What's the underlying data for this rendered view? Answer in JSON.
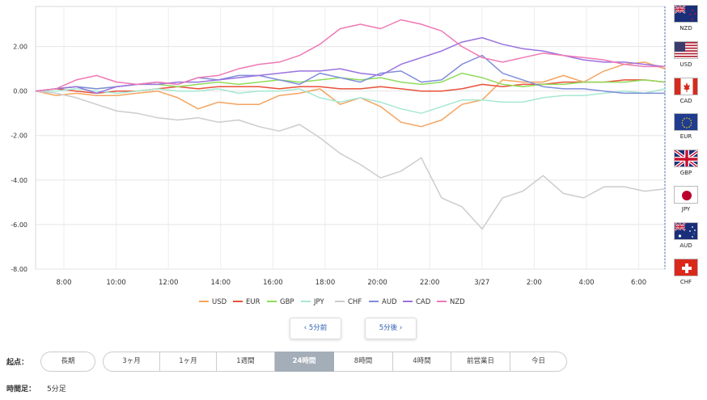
{
  "chart_data": {
    "type": "line",
    "y_ticks": [
      "2.00",
      "0.00",
      "-2.00",
      "-4.00",
      "-6.00",
      "-8.00"
    ],
    "ylim": [
      -8,
      3.8
    ],
    "x_ticks": [
      "8:00",
      "10:00",
      "12:00",
      "14:00",
      "16:00",
      "18:00",
      "20:00",
      "22:00",
      "3/27",
      "2:00",
      "4:00",
      "6:00"
    ],
    "grid": true,
    "legend_position": "bottom",
    "series": [
      {
        "name": "USD",
        "color": "#f4a460",
        "values": [
          0,
          -0.2,
          -0.1,
          -0.2,
          -0.2,
          -0.1,
          0,
          -0.3,
          -0.8,
          -0.5,
          -0.6,
          -0.6,
          -0.2,
          -0.1,
          0.1,
          -0.6,
          -0.3,
          -0.7,
          -1.4,
          -1.6,
          -1.3,
          -0.6,
          -0.4,
          0.5,
          0.4,
          0.4,
          0.7,
          0.4,
          0.9,
          1.2,
          1.3,
          1.0
        ]
      },
      {
        "name": "EUR",
        "color": "#e8513a",
        "values": [
          0,
          0.1,
          0,
          -0.1,
          0,
          0,
          0.1,
          0.2,
          0.1,
          0.2,
          0.2,
          0.2,
          0.1,
          0.2,
          0.2,
          0.1,
          0.1,
          0.2,
          0.1,
          0,
          0,
          0.1,
          0.3,
          0.2,
          0.3,
          0.3,
          0.4,
          0.4,
          0.4,
          0.5,
          0.5,
          0.4
        ]
      },
      {
        "name": "GBP",
        "color": "#8fdc5a",
        "values": [
          0,
          0.1,
          0.2,
          0.1,
          0.2,
          0.3,
          0.3,
          0.2,
          0.3,
          0.4,
          0.3,
          0.4,
          0.5,
          0.4,
          0.5,
          0.6,
          0.5,
          0.6,
          0.4,
          0.3,
          0.4,
          0.8,
          0.6,
          0.3,
          0.2,
          0.3,
          0.3,
          0.4,
          0.4,
          0.4,
          0.5,
          0.4
        ]
      },
      {
        "name": "JPY",
        "color": "#a6e8d2",
        "values": [
          0,
          0,
          0.1,
          0,
          -0.1,
          0,
          0.1,
          0,
          0,
          0.1,
          -0.1,
          0,
          0,
          0.1,
          -0.3,
          -0.5,
          -0.3,
          -0.5,
          -0.8,
          -1.0,
          -0.7,
          -0.4,
          -0.4,
          -0.5,
          -0.5,
          -0.3,
          -0.2,
          -0.2,
          -0.1,
          0,
          -0.1,
          0.1
        ]
      },
      {
        "name": "CHF",
        "color": "#cccccc",
        "values": [
          0,
          -0.1,
          -0.3,
          -0.6,
          -0.9,
          -1.0,
          -1.2,
          -1.3,
          -1.2,
          -1.4,
          -1.3,
          -1.6,
          -1.8,
          -1.5,
          -2.1,
          -2.8,
          -3.3,
          -3.9,
          -3.6,
          -3.0,
          -4.8,
          -5.2,
          -6.2,
          -4.8,
          -4.5,
          -3.8,
          -4.6,
          -4.8,
          -4.3,
          -4.3,
          -4.5,
          -4.4
        ]
      },
      {
        "name": "AUD",
        "color": "#7f8edb",
        "values": [
          0,
          0.1,
          0.2,
          0.1,
          0.2,
          0.3,
          0.4,
          0.3,
          0.6,
          0.5,
          0.7,
          0.7,
          0.5,
          0.3,
          0.8,
          0.6,
          0.4,
          0.8,
          0.9,
          0.4,
          0.5,
          1.2,
          1.6,
          0.8,
          0.5,
          0.2,
          0.1,
          0.1,
          0,
          -0.1,
          -0.1,
          -0.1
        ]
      },
      {
        "name": "CAD",
        "color": "#9a72e0",
        "values": [
          0,
          0.1,
          0.2,
          -0.1,
          0.2,
          0.3,
          0.3,
          0.4,
          0.4,
          0.5,
          0.6,
          0.7,
          0.8,
          0.9,
          0.9,
          1.0,
          0.8,
          0.7,
          1.2,
          1.5,
          1.8,
          2.2,
          2.4,
          2.1,
          1.9,
          1.8,
          1.6,
          1.4,
          1.3,
          1.3,
          1.2,
          1.1
        ]
      },
      {
        "name": "NZD",
        "color": "#ee79b4",
        "values": [
          0,
          0.1,
          0.5,
          0.7,
          0.4,
          0.3,
          0.4,
          0.3,
          0.6,
          0.7,
          1.0,
          1.2,
          1.3,
          1.6,
          2.1,
          2.8,
          3.0,
          2.8,
          3.2,
          3.0,
          2.7,
          2.0,
          1.5,
          1.3,
          1.5,
          1.7,
          1.6,
          1.5,
          1.4,
          1.2,
          1.1,
          1.1
        ]
      }
    ]
  },
  "flags": [
    {
      "code": "NZD"
    },
    {
      "code": "USD"
    },
    {
      "code": "CAD"
    },
    {
      "code": "EUR"
    },
    {
      "code": "GBP"
    },
    {
      "code": "JPY"
    },
    {
      "code": "AUD"
    },
    {
      "code": "CHF"
    }
  ],
  "nav": {
    "prev_label": "‹ 5分前",
    "next_label": "5分後 ›"
  },
  "period": {
    "label": "起点：",
    "long_label": "長期",
    "segments": [
      "3ヶ月",
      "1ヶ月",
      "1週間",
      "24時間",
      "8時間",
      "4時間",
      "前営業日",
      "今日"
    ],
    "active": "24時間"
  },
  "interval": {
    "label": "時間足：",
    "value": "5分足"
  }
}
